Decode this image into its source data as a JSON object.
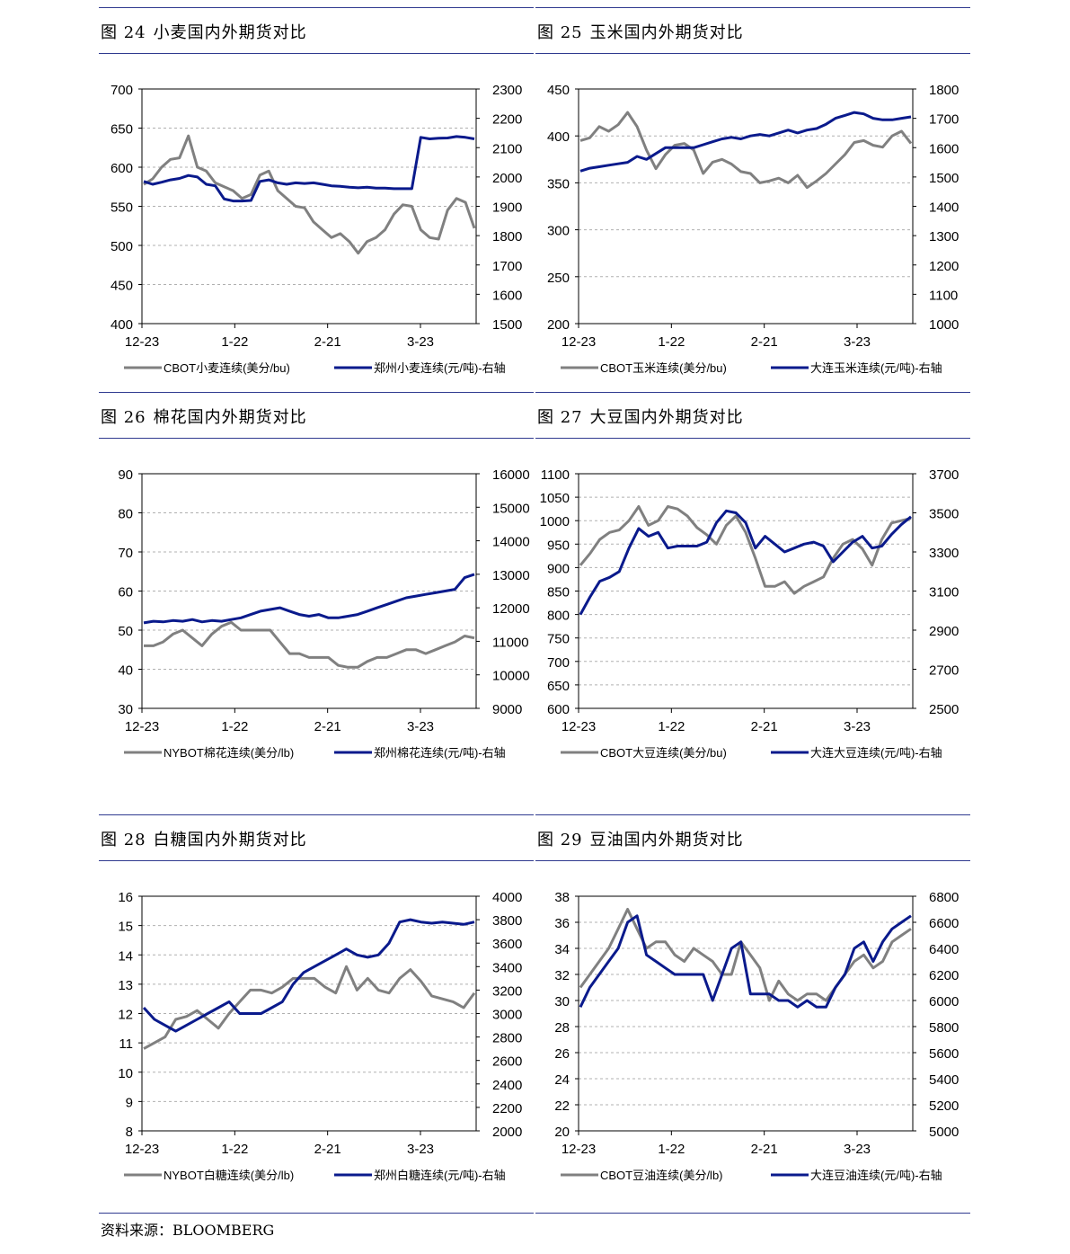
{
  "source": "资料来源：BLOOMBERG",
  "chart_data": [
    {
      "type": "line",
      "fig_no": "图 24",
      "title": "小麦国内外期货对比",
      "x_ticks": [
        "12-23",
        "1-22",
        "2-21",
        "3-23"
      ],
      "y_left": {
        "min": 400,
        "max": 700,
        "ticks": [
          400,
          450,
          500,
          550,
          600,
          650,
          700
        ]
      },
      "y_right": {
        "min": 1500,
        "max": 2300,
        "ticks": [
          1500,
          1600,
          1700,
          1800,
          1900,
          2000,
          2100,
          2200,
          2300
        ]
      },
      "series": [
        {
          "name": "CBOT小麦连续(美分/bu)",
          "axis": "left",
          "color": "#808080",
          "values": [
            578,
            585,
            600,
            610,
            612,
            640,
            600,
            595,
            580,
            575,
            570,
            560,
            565,
            590,
            595,
            570,
            560,
            550,
            548,
            530,
            520,
            510,
            515,
            505,
            490,
            505,
            510,
            520,
            540,
            552,
            550,
            520,
            510,
            508,
            545,
            560,
            555,
            522
          ]
        },
        {
          "name": "郑州小麦连续(元/吨)-右轴",
          "axis": "right",
          "color": "#0a1a8c",
          "values": [
            1985,
            1975,
            1982,
            1990,
            1995,
            2005,
            2000,
            1975,
            1970,
            1925,
            1918,
            1918,
            1920,
            1985,
            1990,
            1980,
            1975,
            1980,
            1978,
            1980,
            1975,
            1970,
            1968,
            1965,
            1963,
            1965,
            1962,
            1962,
            1960,
            1960,
            1960,
            2135,
            2130,
            2132,
            2133,
            2138,
            2135,
            2130
          ]
        }
      ]
    },
    {
      "type": "line",
      "fig_no": "图 25",
      "title": "玉米国内外期货对比",
      "x_ticks": [
        "12-23",
        "1-22",
        "2-21",
        "3-23"
      ],
      "y_left": {
        "min": 200,
        "max": 450,
        "ticks": [
          200,
          250,
          300,
          350,
          400,
          450
        ]
      },
      "y_right": {
        "min": 1000,
        "max": 1800,
        "ticks": [
          1000,
          1100,
          1200,
          1300,
          1400,
          1500,
          1600,
          1700,
          1800
        ]
      },
      "series": [
        {
          "name": "CBOT玉米连续(美分/bu)",
          "axis": "left",
          "color": "#808080",
          "values": [
            395,
            398,
            410,
            405,
            412,
            425,
            410,
            385,
            365,
            380,
            390,
            392,
            385,
            360,
            372,
            375,
            370,
            362,
            360,
            350,
            352,
            355,
            350,
            358,
            345,
            352,
            360,
            370,
            380,
            393,
            395,
            390,
            388,
            400,
            405,
            392
          ]
        },
        {
          "name": "大连玉米连续(元/吨)-右轴",
          "axis": "right",
          "color": "#0a1a8c",
          "values": [
            1520,
            1530,
            1535,
            1540,
            1545,
            1550,
            1570,
            1560,
            1580,
            1600,
            1600,
            1600,
            1600,
            1610,
            1620,
            1630,
            1635,
            1630,
            1640,
            1645,
            1640,
            1650,
            1660,
            1650,
            1660,
            1665,
            1680,
            1700,
            1710,
            1720,
            1715,
            1700,
            1695,
            1695,
            1700,
            1705
          ]
        }
      ]
    },
    {
      "type": "line",
      "fig_no": "图 26",
      "title": "棉花国内外期货对比",
      "x_ticks": [
        "12-23",
        "1-22",
        "2-21",
        "3-23"
      ],
      "y_left": {
        "min": 30,
        "max": 90,
        "ticks": [
          30,
          40,
          50,
          60,
          70,
          80,
          90
        ]
      },
      "y_right": {
        "min": 9000,
        "max": 16000,
        "ticks": [
          9000,
          10000,
          11000,
          12000,
          13000,
          14000,
          15000,
          16000
        ]
      },
      "series": [
        {
          "name": "NYBOT棉花连续(美分/lb)",
          "axis": "left",
          "color": "#808080",
          "values": [
            46,
            46,
            47,
            49,
            50,
            48,
            46,
            49,
            51,
            52,
            50,
            50,
            50,
            50,
            47,
            44,
            44,
            43,
            43,
            43,
            41,
            40.5,
            40.5,
            42,
            43,
            43,
            44,
            45,
            45,
            44,
            45,
            46,
            47,
            48.5,
            48
          ]
        },
        {
          "name": "郑州棉花连续(元/吨)-右轴",
          "axis": "right",
          "color": "#0a1a8c",
          "values": [
            11550,
            11600,
            11580,
            11620,
            11600,
            11650,
            11580,
            11620,
            11600,
            11650,
            11700,
            11800,
            11900,
            11950,
            12000,
            11900,
            11800,
            11750,
            11800,
            11700,
            11700,
            11750,
            11800,
            11900,
            12000,
            12100,
            12200,
            12300,
            12350,
            12400,
            12450,
            12500,
            12550,
            12900,
            13000
          ]
        }
      ]
    },
    {
      "type": "line",
      "fig_no": "图 27",
      "title": "大豆国内外期货对比",
      "x_ticks": [
        "12-23",
        "1-22",
        "2-21",
        "3-23"
      ],
      "y_left": {
        "min": 600,
        "max": 1100,
        "ticks": [
          600,
          650,
          700,
          750,
          800,
          850,
          900,
          950,
          1000,
          1050,
          1100
        ]
      },
      "y_right": {
        "min": 2500,
        "max": 3700,
        "ticks": [
          2500,
          2700,
          2900,
          3100,
          3300,
          3500,
          3700
        ]
      },
      "series": [
        {
          "name": "CBOT大豆连续(美分/bu)",
          "axis": "left",
          "color": "#808080",
          "values": [
            905,
            930,
            960,
            975,
            980,
            1000,
            1030,
            990,
            1000,
            1030,
            1025,
            1010,
            985,
            970,
            950,
            990,
            1010,
            975,
            920,
            860,
            860,
            870,
            845,
            860,
            870,
            880,
            920,
            950,
            960,
            940,
            905,
            960,
            995,
            1000,
            1005
          ]
        },
        {
          "name": "大连大豆连续(元/吨)-右轴",
          "axis": "right",
          "color": "#0a1a8c",
          "values": [
            2980,
            3070,
            3150,
            3170,
            3200,
            3320,
            3420,
            3380,
            3400,
            3320,
            3330,
            3330,
            3330,
            3350,
            3450,
            3510,
            3500,
            3450,
            3320,
            3380,
            3340,
            3300,
            3320,
            3340,
            3350,
            3330,
            3250,
            3300,
            3350,
            3380,
            3320,
            3330,
            3390,
            3440,
            3480
          ]
        }
      ]
    },
    {
      "type": "line",
      "fig_no": "图 28",
      "title": "白糖国内外期货对比",
      "x_ticks": [
        "12-23",
        "1-22",
        "2-21",
        "3-23"
      ],
      "y_left": {
        "min": 8,
        "max": 16,
        "ticks": [
          8,
          9,
          10,
          11,
          12,
          13,
          14,
          15,
          16
        ]
      },
      "y_right": {
        "min": 2000,
        "max": 4000,
        "ticks": [
          2000,
          2200,
          2400,
          2600,
          2800,
          3000,
          3200,
          3400,
          3600,
          3800,
          4000
        ]
      },
      "series": [
        {
          "name": "NYBOT白糖连续(美分/lb)",
          "axis": "left",
          "color": "#808080",
          "values": [
            10.8,
            11,
            11.2,
            11.8,
            11.9,
            12.1,
            11.8,
            11.5,
            12,
            12.4,
            12.8,
            12.8,
            12.7,
            12.9,
            13.2,
            13.2,
            13.2,
            12.9,
            12.7,
            13.6,
            12.8,
            13.2,
            12.8,
            12.7,
            13.2,
            13.5,
            13.1,
            12.6,
            12.5,
            12.4,
            12.2,
            12.7
          ]
        },
        {
          "name": "郑州白糖连续(元/吨)-右轴",
          "axis": "right",
          "color": "#0a1a8c",
          "values": [
            3050,
            2950,
            2900,
            2850,
            2900,
            2950,
            3000,
            3050,
            3100,
            3000,
            3000,
            3000,
            3050,
            3100,
            3250,
            3350,
            3400,
            3450,
            3500,
            3550,
            3500,
            3480,
            3500,
            3600,
            3780,
            3800,
            3780,
            3770,
            3780,
            3770,
            3760,
            3780
          ]
        }
      ]
    },
    {
      "type": "line",
      "fig_no": "图 29",
      "title": "豆油国内外期货对比",
      "x_ticks": [
        "12-23",
        "1-22",
        "2-21",
        "3-23"
      ],
      "y_left": {
        "min": 20,
        "max": 38,
        "ticks": [
          20,
          22,
          24,
          26,
          28,
          30,
          32,
          34,
          36,
          38
        ]
      },
      "y_right": {
        "min": 5000,
        "max": 6800,
        "ticks": [
          5000,
          5200,
          5400,
          5600,
          5800,
          6000,
          6200,
          6400,
          6600,
          6800
        ]
      },
      "series": [
        {
          "name": "CBOT豆油连续(美分/lb)",
          "axis": "left",
          "color": "#808080",
          "values": [
            31,
            32,
            33,
            34,
            35.5,
            37,
            35.5,
            34,
            34.5,
            34.5,
            33.5,
            33,
            34,
            33.5,
            33,
            32,
            32,
            34.5,
            33.5,
            32.5,
            30,
            31.5,
            30.5,
            30,
            30.5,
            30.5,
            30,
            31,
            32,
            33,
            33.5,
            32.5,
            33,
            34.5,
            35,
            35.5
          ]
        },
        {
          "name": "大连豆油连续(元/吨)-右轴",
          "axis": "right",
          "color": "#0a1a8c",
          "values": [
            5950,
            6100,
            6200,
            6300,
            6400,
            6600,
            6650,
            6350,
            6300,
            6250,
            6200,
            6200,
            6200,
            6200,
            6000,
            6200,
            6400,
            6450,
            6050,
            6050,
            6050,
            6000,
            6000,
            5950,
            6000,
            5950,
            5950,
            6100,
            6200,
            6400,
            6450,
            6300,
            6450,
            6550,
            6600,
            6650
          ]
        }
      ]
    }
  ]
}
